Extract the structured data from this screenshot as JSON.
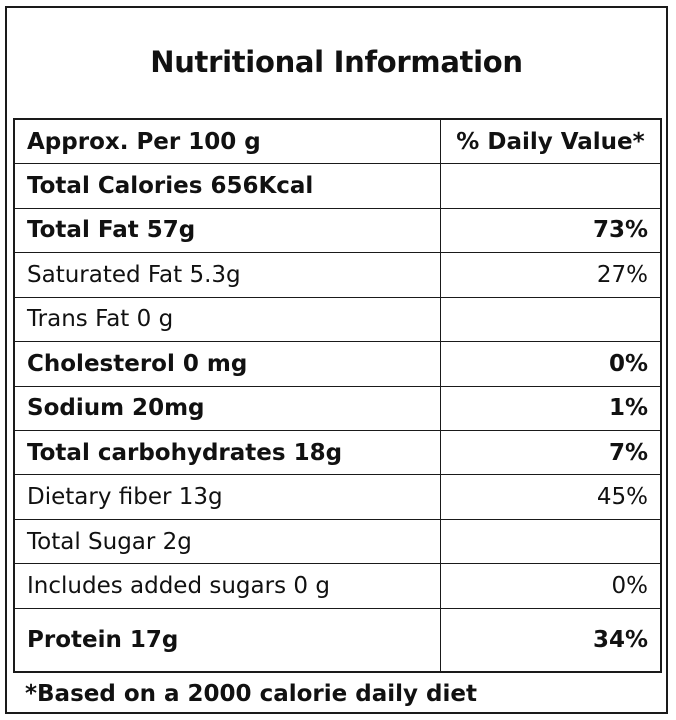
{
  "label": {
    "title": "Nutritional Information",
    "header": {
      "left": "Approx. Per 100 g",
      "right": "% Daily Value*"
    },
    "rows": [
      {
        "name": "Total Calories 656Kcal",
        "dv": ""
      },
      {
        "name": "Total Fat 57g",
        "dv": "73%"
      },
      {
        "name": "Saturated Fat 5.3g",
        "dv": "27%"
      },
      {
        "name": "Trans Fat 0 g",
        "dv": ""
      },
      {
        "name": "Cholesterol 0 mg",
        "dv": "0%"
      },
      {
        "name": "Sodium 20mg",
        "dv": "1%"
      },
      {
        "name": "Total carbohydrates 18g",
        "dv": "7%"
      },
      {
        "name": "Dietary fiber 13g",
        "dv": "45%"
      },
      {
        "name": "Total Sugar 2g",
        "dv": ""
      },
      {
        "name": "Includes added sugars 0 g",
        "dv": "0%"
      },
      {
        "name": "Protein 17g",
        "dv": "34%"
      }
    ],
    "footnote": "*Based on a 2000 calorie daily diet"
  }
}
